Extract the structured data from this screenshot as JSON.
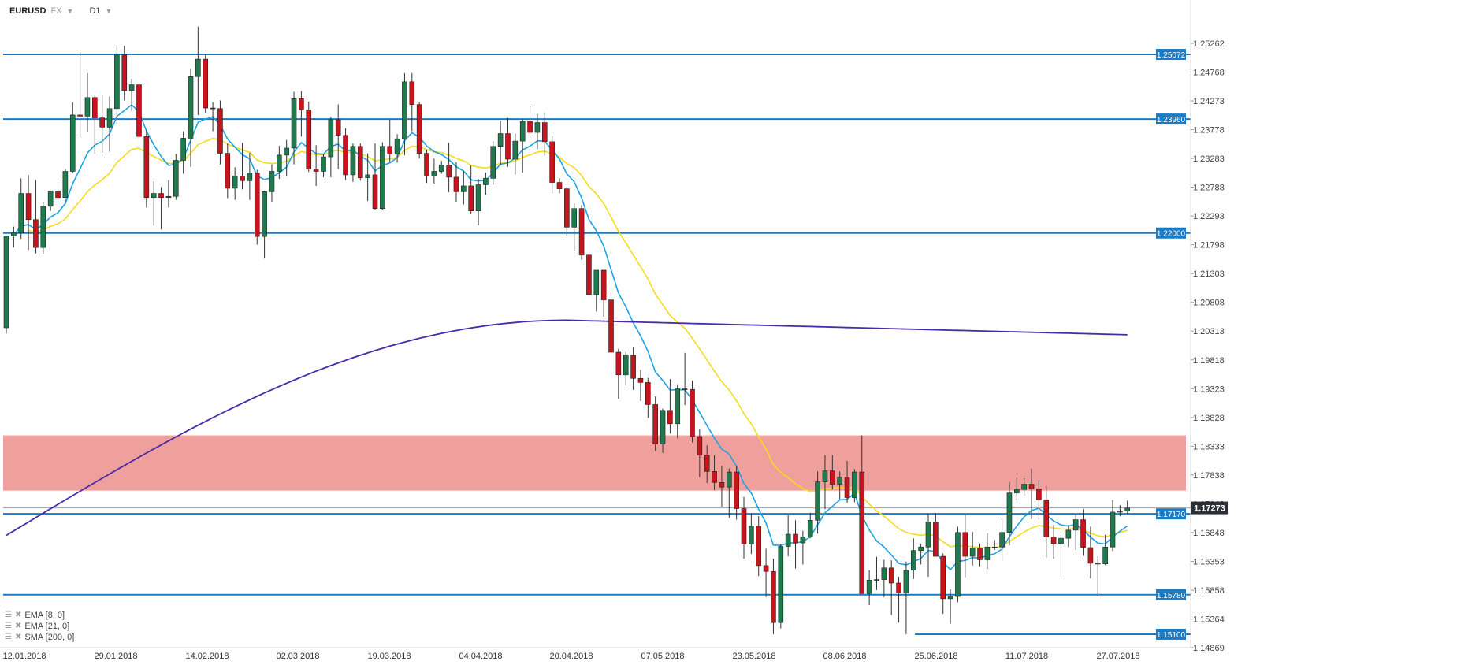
{
  "header": {
    "symbol": "EURUSD",
    "market": "FX",
    "timeframe": "D1"
  },
  "legend": [
    {
      "icon": "list-icon",
      "close": "✖",
      "label": "EMA [8, 0]"
    },
    {
      "icon": "list-icon",
      "close": "✖",
      "label": "EMA [21, 0]"
    },
    {
      "icon": "list-icon",
      "close": "✖",
      "label": "SMA [200, 0]"
    }
  ],
  "chart_data": {
    "type": "candlestick",
    "y_ticks": [
      "1.25262",
      "1.24768",
      "1.24273",
      "1.23778",
      "1.23283",
      "1.22788",
      "1.22293",
      "1.21798",
      "1.21303",
      "1.20808",
      "1.20313",
      "1.19818",
      "1.19323",
      "1.18828",
      "1.18333",
      "1.17838",
      "1.17343",
      "1.16848",
      "1.16353",
      "1.15858",
      "1.15364",
      "1.14869"
    ],
    "x_ticks": [
      "12.01.2018",
      "29.01.2018",
      "14.02.2018",
      "02.03.2018",
      "19.03.2018",
      "04.04.2018",
      "20.04.2018",
      "07.05.2018",
      "23.05.2018",
      "08.06.2018",
      "25.06.2018",
      "11.07.2018",
      "27.07.2018"
    ],
    "ylim": [
      1.14869,
      1.25262
    ],
    "current_price": {
      "label": "1.17273",
      "value": 1.17273
    },
    "horizontal_levels": [
      {
        "label": "1.25072",
        "value": 1.25072
      },
      {
        "label": "1.23960",
        "value": 1.2396
      },
      {
        "label": "1.22000",
        "value": 1.22
      },
      {
        "label": "1.17170",
        "value": 1.1717
      },
      {
        "label": "1.15780",
        "value": 1.1578
      },
      {
        "label": "1.15100",
        "value": 1.151
      }
    ],
    "resistance_zone": {
      "top": 1.1852,
      "bottom": 1.1757,
      "color": "#f0a09c"
    },
    "colors": {
      "up": "#1f7a4d",
      "down": "#c8141c",
      "level": "#1a7cc4",
      "ema8": "#1ba3e6",
      "ema21": "#f5dc1e",
      "sma200": "#4b2aa8"
    },
    "candles": [
      {
        "o": 1.2037,
        "h": 1.2195,
        "l": 1.2027,
        "c": 1.2195
      },
      {
        "o": 1.2195,
        "h": 1.2211,
        "l": 1.2175,
        "c": 1.22
      },
      {
        "o": 1.22,
        "h": 1.2294,
        "l": 1.219,
        "c": 1.2268
      },
      {
        "o": 1.2268,
        "h": 1.23,
        "l": 1.2171,
        "c": 1.2223
      },
      {
        "o": 1.2223,
        "h": 1.2291,
        "l": 1.2165,
        "c": 1.2175
      },
      {
        "o": 1.2175,
        "h": 1.2253,
        "l": 1.2164,
        "c": 1.2246
      },
      {
        "o": 1.2246,
        "h": 1.2273,
        "l": 1.2238,
        "c": 1.2272
      },
      {
        "o": 1.2272,
        "h": 1.2288,
        "l": 1.2249,
        "c": 1.2261
      },
      {
        "o": 1.2261,
        "h": 1.231,
        "l": 1.2253,
        "c": 1.2306
      },
      {
        "o": 1.2306,
        "h": 1.2425,
        "l": 1.2303,
        "c": 1.2403
      },
      {
        "o": 1.2403,
        "h": 1.2511,
        "l": 1.2363,
        "c": 1.2401
      },
      {
        "o": 1.2401,
        "h": 1.2475,
        "l": 1.2373,
        "c": 1.2433
      },
      {
        "o": 1.2433,
        "h": 1.2438,
        "l": 1.2336,
        "c": 1.2398
      },
      {
        "o": 1.2398,
        "h": 1.2438,
        "l": 1.2338,
        "c": 1.2382
      },
      {
        "o": 1.2382,
        "h": 1.2435,
        "l": 1.234,
        "c": 1.2414
      },
      {
        "o": 1.2414,
        "h": 1.2524,
        "l": 1.2388,
        "c": 1.2507
      },
      {
        "o": 1.2507,
        "h": 1.2522,
        "l": 1.2428,
        "c": 1.2445
      },
      {
        "o": 1.2445,
        "h": 1.2465,
        "l": 1.241,
        "c": 1.2455
      },
      {
        "o": 1.2455,
        "h": 1.2458,
        "l": 1.2351,
        "c": 1.2366
      },
      {
        "o": 1.2366,
        "h": 1.2377,
        "l": 1.2244,
        "c": 1.2261
      },
      {
        "o": 1.2261,
        "h": 1.2289,
        "l": 1.2213,
        "c": 1.2268
      },
      {
        "o": 1.2268,
        "h": 1.2279,
        "l": 1.2206,
        "c": 1.2261
      },
      {
        "o": 1.2261,
        "h": 1.2291,
        "l": 1.2244,
        "c": 1.2263
      },
      {
        "o": 1.2263,
        "h": 1.2336,
        "l": 1.2257,
        "c": 1.2325
      },
      {
        "o": 1.2325,
        "h": 1.2375,
        "l": 1.2302,
        "c": 1.2363
      },
      {
        "o": 1.2363,
        "h": 1.2483,
        "l": 1.2314,
        "c": 1.2469
      },
      {
        "o": 1.2469,
        "h": 1.2555,
        "l": 1.2403,
        "c": 1.2499
      },
      {
        "o": 1.2499,
        "h": 1.2508,
        "l": 1.2406,
        "c": 1.2415
      },
      {
        "o": 1.2415,
        "h": 1.2425,
        "l": 1.2375,
        "c": 1.2414
      },
      {
        "o": 1.2414,
        "h": 1.2428,
        "l": 1.2318,
        "c": 1.2337
      },
      {
        "o": 1.2337,
        "h": 1.2354,
        "l": 1.226,
        "c": 1.2277
      },
      {
        "o": 1.2277,
        "h": 1.2313,
        "l": 1.2257,
        "c": 1.2298
      },
      {
        "o": 1.2298,
        "h": 1.2355,
        "l": 1.2275,
        "c": 1.229
      },
      {
        "o": 1.229,
        "h": 1.2338,
        "l": 1.2257,
        "c": 1.2303
      },
      {
        "o": 1.2303,
        "h": 1.2309,
        "l": 1.218,
        "c": 1.2194
      },
      {
        "o": 1.2194,
        "h": 1.2272,
        "l": 1.2156,
        "c": 1.2271
      },
      {
        "o": 1.2271,
        "h": 1.2318,
        "l": 1.2254,
        "c": 1.2306
      },
      {
        "o": 1.2306,
        "h": 1.235,
        "l": 1.2293,
        "c": 1.2334
      },
      {
        "o": 1.2334,
        "h": 1.236,
        "l": 1.2297,
        "c": 1.2346
      },
      {
        "o": 1.2346,
        "h": 1.2443,
        "l": 1.2318,
        "c": 1.2431
      },
      {
        "o": 1.2431,
        "h": 1.2444,
        "l": 1.2366,
        "c": 1.2412
      },
      {
        "o": 1.2412,
        "h": 1.2426,
        "l": 1.2305,
        "c": 1.231
      },
      {
        "o": 1.231,
        "h": 1.2351,
        "l": 1.2281,
        "c": 1.2306
      },
      {
        "o": 1.2306,
        "h": 1.2335,
        "l": 1.2296,
        "c": 1.2331
      },
      {
        "o": 1.2331,
        "h": 1.24,
        "l": 1.2296,
        "c": 1.2395
      },
      {
        "o": 1.2395,
        "h": 1.2421,
        "l": 1.231,
        "c": 1.2368
      },
      {
        "o": 1.2368,
        "h": 1.238,
        "l": 1.2291,
        "c": 1.23
      },
      {
        "o": 1.23,
        "h": 1.2354,
        "l": 1.2288,
        "c": 1.2349
      },
      {
        "o": 1.2349,
        "h": 1.2354,
        "l": 1.229,
        "c": 1.2295
      },
      {
        "o": 1.2295,
        "h": 1.2337,
        "l": 1.2255,
        "c": 1.23
      },
      {
        "o": 1.23,
        "h": 1.2354,
        "l": 1.224,
        "c": 1.2242
      },
      {
        "o": 1.2242,
        "h": 1.2356,
        "l": 1.224,
        "c": 1.2349
      },
      {
        "o": 1.2349,
        "h": 1.2395,
        "l": 1.2322,
        "c": 1.2336
      },
      {
        "o": 1.2336,
        "h": 1.237,
        "l": 1.2321,
        "c": 1.2362
      },
      {
        "o": 1.2362,
        "h": 1.2475,
        "l": 1.2334,
        "c": 1.246
      },
      {
        "o": 1.246,
        "h": 1.2475,
        "l": 1.2375,
        "c": 1.2421
      },
      {
        "o": 1.2421,
        "h": 1.2425,
        "l": 1.2328,
        "c": 1.2337
      },
      {
        "o": 1.2337,
        "h": 1.2343,
        "l": 1.2286,
        "c": 1.2298
      },
      {
        "o": 1.2298,
        "h": 1.2328,
        "l": 1.2285,
        "c": 1.2306
      },
      {
        "o": 1.2306,
        "h": 1.2324,
        "l": 1.2302,
        "c": 1.2317
      },
      {
        "o": 1.2317,
        "h": 1.2355,
        "l": 1.227,
        "c": 1.2296
      },
      {
        "o": 1.2296,
        "h": 1.2322,
        "l": 1.2254,
        "c": 1.2271
      },
      {
        "o": 1.2271,
        "h": 1.2307,
        "l": 1.2249,
        "c": 1.2281
      },
      {
        "o": 1.2281,
        "h": 1.2316,
        "l": 1.2232,
        "c": 1.2238
      },
      {
        "o": 1.2238,
        "h": 1.2293,
        "l": 1.2213,
        "c": 1.2283
      },
      {
        "o": 1.2283,
        "h": 1.2304,
        "l": 1.2266,
        "c": 1.2294
      },
      {
        "o": 1.2294,
        "h": 1.2358,
        "l": 1.2283,
        "c": 1.2349
      },
      {
        "o": 1.2349,
        "h": 1.2393,
        "l": 1.2316,
        "c": 1.2371
      },
      {
        "o": 1.2371,
        "h": 1.2398,
        "l": 1.2314,
        "c": 1.2327
      },
      {
        "o": 1.2327,
        "h": 1.2371,
        "l": 1.2301,
        "c": 1.2358
      },
      {
        "o": 1.2358,
        "h": 1.2396,
        "l": 1.2304,
        "c": 1.2392
      },
      {
        "o": 1.2392,
        "h": 1.2418,
        "l": 1.2364,
        "c": 1.2373
      },
      {
        "o": 1.2373,
        "h": 1.2405,
        "l": 1.2344,
        "c": 1.239
      },
      {
        "o": 1.239,
        "h": 1.2406,
        "l": 1.2333,
        "c": 1.2357
      },
      {
        "o": 1.2357,
        "h": 1.2367,
        "l": 1.2268,
        "c": 1.2287
      },
      {
        "o": 1.2287,
        "h": 1.2294,
        "l": 1.2268,
        "c": 1.2276
      },
      {
        "o": 1.2276,
        "h": 1.228,
        "l": 1.2195,
        "c": 1.221
      },
      {
        "o": 1.221,
        "h": 1.2251,
        "l": 1.2168,
        "c": 1.2242
      },
      {
        "o": 1.2242,
        "h": 1.2248,
        "l": 1.2154,
        "c": 1.2162
      },
      {
        "o": 1.2162,
        "h": 1.2164,
        "l": 1.2095,
        "c": 1.2094
      },
      {
        "o": 1.2094,
        "h": 1.2134,
        "l": 1.2065,
        "c": 1.2136
      },
      {
        "o": 1.2136,
        "h": 1.2136,
        "l": 1.2056,
        "c": 1.2085
      },
      {
        "o": 1.2085,
        "h": 1.2098,
        "l": 1.1997,
        "c": 1.1995
      },
      {
        "o": 1.1995,
        "h": 1.2001,
        "l": 1.1915,
        "c": 1.1956
      },
      {
        "o": 1.1956,
        "h": 1.1996,
        "l": 1.1938,
        "c": 1.199
      },
      {
        "o": 1.199,
        "h": 1.2004,
        "l": 1.193,
        "c": 1.195
      },
      {
        "o": 1.195,
        "h": 1.1965,
        "l": 1.1911,
        "c": 1.1943
      },
      {
        "o": 1.1943,
        "h": 1.1951,
        "l": 1.1882,
        "c": 1.1905
      },
      {
        "o": 1.1905,
        "h": 1.1919,
        "l": 1.1825,
        "c": 1.1837
      },
      {
        "o": 1.1837,
        "h": 1.1898,
        "l": 1.1822,
        "c": 1.1895
      },
      {
        "o": 1.1895,
        "h": 1.1949,
        "l": 1.1855,
        "c": 1.1872
      },
      {
        "o": 1.1872,
        "h": 1.194,
        "l": 1.1847,
        "c": 1.1932
      },
      {
        "o": 1.1932,
        "h": 1.1994,
        "l": 1.1904,
        "c": 1.1931
      },
      {
        "o": 1.1931,
        "h": 1.1946,
        "l": 1.184,
        "c": 1.185
      },
      {
        "o": 1.185,
        "h": 1.1863,
        "l": 1.178,
        "c": 1.1818
      },
      {
        "o": 1.1818,
        "h": 1.1835,
        "l": 1.177,
        "c": 1.179
      },
      {
        "o": 1.179,
        "h": 1.1818,
        "l": 1.1758,
        "c": 1.1771
      },
      {
        "o": 1.1771,
        "h": 1.18,
        "l": 1.1729,
        "c": 1.1763
      },
      {
        "o": 1.1763,
        "h": 1.1795,
        "l": 1.171,
        "c": 1.1789
      },
      {
        "o": 1.1789,
        "h": 1.1799,
        "l": 1.1707,
        "c": 1.1726
      },
      {
        "o": 1.1726,
        "h": 1.1746,
        "l": 1.164,
        "c": 1.1665
      },
      {
        "o": 1.1665,
        "h": 1.1718,
        "l": 1.1648,
        "c": 1.1696
      },
      {
        "o": 1.1696,
        "h": 1.1713,
        "l": 1.161,
        "c": 1.1628
      },
      {
        "o": 1.1628,
        "h": 1.1657,
        "l": 1.1574,
        "c": 1.1618
      },
      {
        "o": 1.1618,
        "h": 1.164,
        "l": 1.151,
        "c": 1.153
      },
      {
        "o": 1.153,
        "h": 1.1665,
        "l": 1.152,
        "c": 1.1661
      },
      {
        "o": 1.1661,
        "h": 1.1715,
        "l": 1.1644,
        "c": 1.1682
      },
      {
        "o": 1.1682,
        "h": 1.1706,
        "l": 1.1623,
        "c": 1.1667
      },
      {
        "o": 1.1667,
        "h": 1.1688,
        "l": 1.163,
        "c": 1.1677
      },
      {
        "o": 1.1677,
        "h": 1.1719,
        "l": 1.1675,
        "c": 1.1706
      },
      {
        "o": 1.1706,
        "h": 1.179,
        "l": 1.1683,
        "c": 1.1772
      },
      {
        "o": 1.1772,
        "h": 1.1818,
        "l": 1.1725,
        "c": 1.1791
      },
      {
        "o": 1.1791,
        "h": 1.1818,
        "l": 1.1759,
        "c": 1.1768
      },
      {
        "o": 1.1768,
        "h": 1.179,
        "l": 1.1742,
        "c": 1.178
      },
      {
        "o": 1.178,
        "h": 1.1808,
        "l": 1.1736,
        "c": 1.1745
      },
      {
        "o": 1.1745,
        "h": 1.1794,
        "l": 1.1737,
        "c": 1.1789
      },
      {
        "o": 1.1789,
        "h": 1.1852,
        "l": 1.1581,
        "c": 1.158
      },
      {
        "o": 1.158,
        "h": 1.162,
        "l": 1.156,
        "c": 1.1603
      },
      {
        "o": 1.1603,
        "h": 1.1643,
        "l": 1.1586,
        "c": 1.1604
      },
      {
        "o": 1.1604,
        "h": 1.1638,
        "l": 1.1574,
        "c": 1.1624
      },
      {
        "o": 1.1624,
        "h": 1.1637,
        "l": 1.1543,
        "c": 1.1598
      },
      {
        "o": 1.1598,
        "h": 1.1609,
        "l": 1.153,
        "c": 1.1581
      },
      {
        "o": 1.1581,
        "h": 1.1635,
        "l": 1.151,
        "c": 1.162
      },
      {
        "o": 1.162,
        "h": 1.1675,
        "l": 1.1605,
        "c": 1.1654
      },
      {
        "o": 1.1654,
        "h": 1.1666,
        "l": 1.163,
        "c": 1.166
      },
      {
        "o": 1.166,
        "h": 1.1717,
        "l": 1.1609,
        "c": 1.1703
      },
      {
        "o": 1.1703,
        "h": 1.1718,
        "l": 1.165,
        "c": 1.1644
      },
      {
        "o": 1.1644,
        "h": 1.1649,
        "l": 1.1545,
        "c": 1.1571
      },
      {
        "o": 1.1571,
        "h": 1.1587,
        "l": 1.1528,
        "c": 1.1575
      },
      {
        "o": 1.1575,
        "h": 1.1695,
        "l": 1.1565,
        "c": 1.1685
      },
      {
        "o": 1.1685,
        "h": 1.1716,
        "l": 1.1608,
        "c": 1.1644
      },
      {
        "o": 1.1644,
        "h": 1.1686,
        "l": 1.1628,
        "c": 1.1658
      },
      {
        "o": 1.1658,
        "h": 1.1666,
        "l": 1.1627,
        "c": 1.1638
      },
      {
        "o": 1.1638,
        "h": 1.1684,
        "l": 1.1622,
        "c": 1.166
      },
      {
        "o": 1.166,
        "h": 1.1672,
        "l": 1.1655,
        "c": 1.166
      },
      {
        "o": 1.166,
        "h": 1.1709,
        "l": 1.1636,
        "c": 1.1685
      },
      {
        "o": 1.1685,
        "h": 1.1772,
        "l": 1.1663,
        "c": 1.1753
      },
      {
        "o": 1.1753,
        "h": 1.1779,
        "l": 1.1741,
        "c": 1.1759
      },
      {
        "o": 1.1759,
        "h": 1.1778,
        "l": 1.1748,
        "c": 1.1768
      },
      {
        "o": 1.1768,
        "h": 1.1795,
        "l": 1.1708,
        "c": 1.176
      },
      {
        "o": 1.176,
        "h": 1.1776,
        "l": 1.1707,
        "c": 1.1741
      },
      {
        "o": 1.1741,
        "h": 1.1765,
        "l": 1.1642,
        "c": 1.1677
      },
      {
        "o": 1.1677,
        "h": 1.1698,
        "l": 1.164,
        "c": 1.1666
      },
      {
        "o": 1.1666,
        "h": 1.1681,
        "l": 1.1609,
        "c": 1.1675
      },
      {
        "o": 1.1675,
        "h": 1.1698,
        "l": 1.166,
        "c": 1.1689
      },
      {
        "o": 1.1689,
        "h": 1.1717,
        "l": 1.1655,
        "c": 1.1707
      },
      {
        "o": 1.1707,
        "h": 1.1725,
        "l": 1.1645,
        "c": 1.1659
      },
      {
        "o": 1.1659,
        "h": 1.1695,
        "l": 1.1606,
        "c": 1.1632
      },
      {
        "o": 1.1632,
        "h": 1.1644,
        "l": 1.1575,
        "c": 1.1631
      },
      {
        "o": 1.1631,
        "h": 1.1681,
        "l": 1.1629,
        "c": 1.166
      },
      {
        "o": 1.166,
        "h": 1.1741,
        "l": 1.1653,
        "c": 1.172
      },
      {
        "o": 1.172,
        "h": 1.1732,
        "l": 1.1713,
        "c": 1.1722
      },
      {
        "o": 1.1722,
        "h": 1.174,
        "l": 1.1718,
        "c": 1.1727
      }
    ]
  }
}
